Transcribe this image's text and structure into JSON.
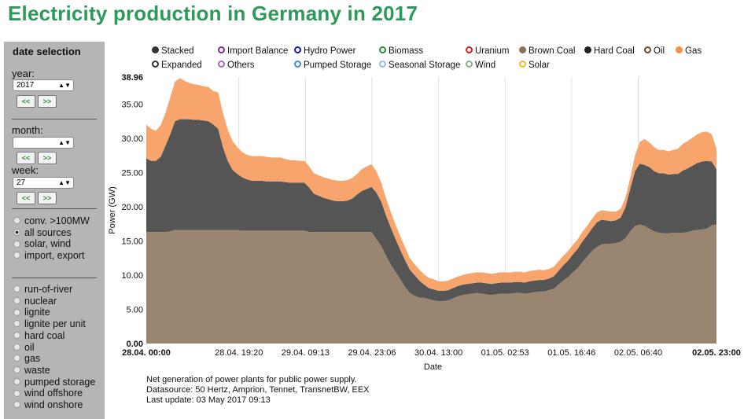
{
  "title": "Electricity production in Germany in 2017",
  "sidebar": {
    "heading": "date selection",
    "year_label": "year:",
    "year_value": "2017",
    "month_label": "month:",
    "month_value": "",
    "week_label": "week:",
    "week_value": "27",
    "prev_label": "<<",
    "next_label": ">>",
    "mode_options": [
      {
        "label": "conv. >100MW",
        "selected": false
      },
      {
        "label": "all sources",
        "selected": true
      },
      {
        "label": "solar, wind",
        "selected": false
      },
      {
        "label": "import, export",
        "selected": false
      }
    ],
    "source_options": [
      {
        "label": "run-of-river",
        "selected": false
      },
      {
        "label": "nuclear",
        "selected": false
      },
      {
        "label": "lignite",
        "selected": false
      },
      {
        "label": "lignite per unit",
        "selected": false
      },
      {
        "label": "hard coal",
        "selected": false
      },
      {
        "label": "oil",
        "selected": false
      },
      {
        "label": "gas",
        "selected": false
      },
      {
        "label": "waste",
        "selected": false
      },
      {
        "label": "pumped storage",
        "selected": false
      },
      {
        "label": "wind offshore",
        "selected": false
      },
      {
        "label": "wind onshore",
        "selected": false
      }
    ]
  },
  "legend": [
    {
      "label": "Stacked",
      "color": "#333333",
      "filled": true
    },
    {
      "label": "Import Balance",
      "color": "#7b2d8e",
      "filled": false
    },
    {
      "label": "Hydro Power",
      "color": "#1a1aa6",
      "filled": false
    },
    {
      "label": "Biomass",
      "color": "#2e8b3a",
      "filled": false
    },
    {
      "label": "Uranium",
      "color": "#d62020",
      "filled": false
    },
    {
      "label": "Brown Coal",
      "color": "#8b735a",
      "filled": true
    },
    {
      "label": "Hard Coal",
      "color": "#222222",
      "filled": true
    },
    {
      "label": "Oil",
      "color": "#6b4b2a",
      "filled": false
    },
    {
      "label": "Gas",
      "color": "#f0914a",
      "filled": true
    },
    {
      "label": "Expanded",
      "color": "#333333",
      "filled": false
    },
    {
      "label": "Others",
      "color": "#a070b8",
      "filled": false
    },
    {
      "label": "Pumped Storage",
      "color": "#3a8fd0",
      "filled": false
    },
    {
      "label": "Seasonal Storage",
      "color": "#9ab8e0",
      "filled": false
    },
    {
      "label": "Wind",
      "color": "#8fb08a",
      "filled": false
    },
    {
      "label": "Solar",
      "color": "#f0c020",
      "filled": false
    }
  ],
  "notes": [
    "Net generation of power plants for public power supply.",
    "Datasource: 50 Hertz, Amprion, Tennet, TransnetBW, EEX",
    "Last update: 03 May 2017 09:13"
  ],
  "chart_data": {
    "type": "area",
    "title": "",
    "xlabel": "Date",
    "ylabel": "Power (GW)",
    "ylim": [
      0,
      38.96
    ],
    "yticks": [
      "0.00",
      "5.00",
      "10.00",
      "15.00",
      "20.00",
      "25.00",
      "30.00",
      "35.00",
      "38.96"
    ],
    "xticks": [
      {
        "label": "28.04. 00:00",
        "pos": 0,
        "bold": true
      },
      {
        "label": "28.04. 19:20",
        "pos": 19.33,
        "bold": false
      },
      {
        "label": "29.04. 09:13",
        "pos": 33.22,
        "bold": false
      },
      {
        "label": "29.04. 23:06",
        "pos": 47.1,
        "bold": false
      },
      {
        "label": "30.04. 13:00",
        "pos": 61,
        "bold": false
      },
      {
        "label": "01.05. 02:53",
        "pos": 74.88,
        "bold": false
      },
      {
        "label": "01.05. 16:46",
        "pos": 88.77,
        "bold": false
      },
      {
        "label": "02.05. 06:40",
        "pos": 102.67,
        "bold": false
      },
      {
        "label": "02.05. 23:00",
        "pos": 119,
        "bold": true
      }
    ],
    "stacked": true,
    "x_hours": [
      0,
      1,
      2,
      3,
      4,
      5,
      6,
      7,
      8,
      9,
      10,
      11,
      12,
      13,
      14,
      15,
      16,
      17,
      18,
      19,
      20,
      21,
      22,
      23,
      24,
      25,
      26,
      27,
      28,
      29,
      30,
      31,
      32,
      33,
      34,
      35,
      36,
      37,
      38,
      39,
      40,
      41,
      42,
      43,
      44,
      45,
      46,
      47,
      48,
      49,
      50,
      51,
      52,
      53,
      54,
      55,
      56,
      57,
      58,
      59,
      60,
      61,
      62,
      63,
      64,
      65,
      66,
      67,
      68,
      69,
      70,
      71,
      72,
      73,
      74,
      75,
      76,
      77,
      78,
      79,
      80,
      81,
      82,
      83,
      84,
      85,
      86,
      87,
      88,
      89,
      90,
      91,
      92,
      93,
      94,
      95,
      96,
      97,
      98,
      99,
      100,
      101,
      102,
      103,
      104,
      105,
      106,
      107,
      108,
      109,
      110,
      111,
      112,
      113,
      114,
      115,
      116,
      117,
      118,
      119
    ],
    "series": [
      {
        "name": "Brown Coal",
        "color": "#9a8670",
        "values": [
          16.3,
          16.3,
          16.3,
          16.3,
          16.3,
          16.4,
          16.6,
          16.6,
          16.6,
          16.6,
          16.6,
          16.6,
          16.6,
          16.6,
          16.6,
          16.6,
          16.6,
          16.6,
          16.6,
          16.6,
          16.5,
          16.5,
          16.5,
          16.5,
          16.5,
          16.5,
          16.5,
          16.5,
          16.5,
          16.5,
          16.5,
          16.5,
          16.5,
          16.5,
          16.3,
          16.3,
          16.3,
          16.3,
          16.3,
          16.3,
          16.3,
          16.3,
          16.3,
          16.3,
          16.3,
          16.3,
          16.3,
          16.3,
          15.3,
          14.3,
          12.9,
          11.6,
          10.5,
          9.4,
          8.3,
          7.4,
          7.0,
          6.7,
          6.7,
          6.5,
          6.3,
          6.2,
          6.2,
          6.3,
          6.6,
          6.9,
          7.1,
          7.2,
          7.3,
          7.4,
          7.3,
          7.2,
          7.1,
          7.2,
          7.3,
          7.3,
          7.3,
          7.4,
          7.4,
          7.3,
          7.4,
          7.5,
          7.6,
          7.6,
          7.8,
          8.0,
          8.6,
          9.2,
          9.7,
          10.4,
          11.0,
          11.9,
          12.7,
          13.5,
          14.1,
          14.5,
          14.6,
          14.6,
          14.7,
          14.9,
          15.4,
          16.4,
          17.2,
          17.4,
          17.2,
          16.8,
          16.4,
          16.2,
          16.1,
          16.1,
          16.2,
          16.2,
          16.2,
          16.3,
          16.5,
          16.6,
          16.7,
          16.8,
          17.3,
          17.4
        ]
      },
      {
        "name": "Hard Coal",
        "color": "#555555",
        "values": [
          10.8,
          10.4,
          10.4,
          11.0,
          12.6,
          14.2,
          15.9,
          16.2,
          16.2,
          16.2,
          16.1,
          16.1,
          16.0,
          15.9,
          15.4,
          14.8,
          12.1,
          10.1,
          8.8,
          8.2,
          7.8,
          7.5,
          7.3,
          7.3,
          7.3,
          7.2,
          7.2,
          7.2,
          7.2,
          7.1,
          7.0,
          7.0,
          7.0,
          7.0,
          6.5,
          5.6,
          5.3,
          5.0,
          4.8,
          4.6,
          4.5,
          4.5,
          4.6,
          4.9,
          5.5,
          6.0,
          6.3,
          6.6,
          6.8,
          6.5,
          5.9,
          5.4,
          4.8,
          4.3,
          3.9,
          3.4,
          3.0,
          2.5,
          1.9,
          1.6,
          1.6,
          1.5,
          1.5,
          1.5,
          1.5,
          1.5,
          1.5,
          1.5,
          1.5,
          1.5,
          1.6,
          1.6,
          1.6,
          1.6,
          1.6,
          1.6,
          1.6,
          1.6,
          1.6,
          1.6,
          1.7,
          1.7,
          1.7,
          1.7,
          1.7,
          1.8,
          2.0,
          2.2,
          2.4,
          2.6,
          2.8,
          3.0,
          3.1,
          3.3,
          3.6,
          3.6,
          3.4,
          3.3,
          3.3,
          3.5,
          4.5,
          6.2,
          8.0,
          8.9,
          8.9,
          9.0,
          8.8,
          8.7,
          8.8,
          8.6,
          8.6,
          8.6,
          9.1,
          9.3,
          9.5,
          9.8,
          9.9,
          9.9,
          9.3,
          8.1
        ]
      },
      {
        "name": "Gas",
        "color": "#f7a56c",
        "values": [
          4.9,
          4.7,
          4.4,
          4.6,
          4.8,
          5.4,
          5.8,
          6.0,
          5.6,
          5.3,
          5.2,
          5.1,
          5.0,
          5.0,
          4.9,
          5.3,
          5.0,
          4.6,
          4.2,
          3.9,
          3.7,
          3.6,
          3.6,
          3.6,
          3.6,
          3.6,
          3.5,
          3.5,
          3.5,
          3.4,
          3.3,
          3.3,
          3.2,
          3.2,
          3.1,
          3.0,
          3.0,
          3.0,
          3.0,
          3.0,
          3.0,
          3.0,
          3.0,
          3.0,
          3.0,
          3.2,
          3.3,
          3.3,
          3.1,
          2.8,
          2.5,
          2.3,
          2.1,
          2.0,
          1.9,
          1.7,
          1.6,
          1.6,
          1.5,
          1.5,
          1.5,
          1.4,
          1.4,
          1.4,
          1.4,
          1.4,
          1.4,
          1.5,
          1.5,
          1.5,
          1.5,
          1.5,
          1.5,
          1.5,
          1.5,
          1.5,
          1.5,
          1.5,
          1.5,
          1.5,
          1.5,
          1.5,
          1.5,
          1.4,
          1.4,
          1.4,
          1.4,
          1.4,
          1.4,
          1.4,
          1.4,
          1.4,
          1.4,
          1.4,
          1.4,
          1.4,
          1.4,
          1.4,
          1.3,
          1.3,
          1.4,
          1.6,
          2.3,
          3.2,
          3.8,
          3.6,
          3.5,
          3.4,
          3.4,
          3.4,
          3.5,
          3.7,
          3.9,
          4.0,
          4.1,
          4.2,
          4.3,
          4.3,
          4.0,
          3.0
        ]
      }
    ],
    "grid": "vertical",
    "legend": "top"
  }
}
